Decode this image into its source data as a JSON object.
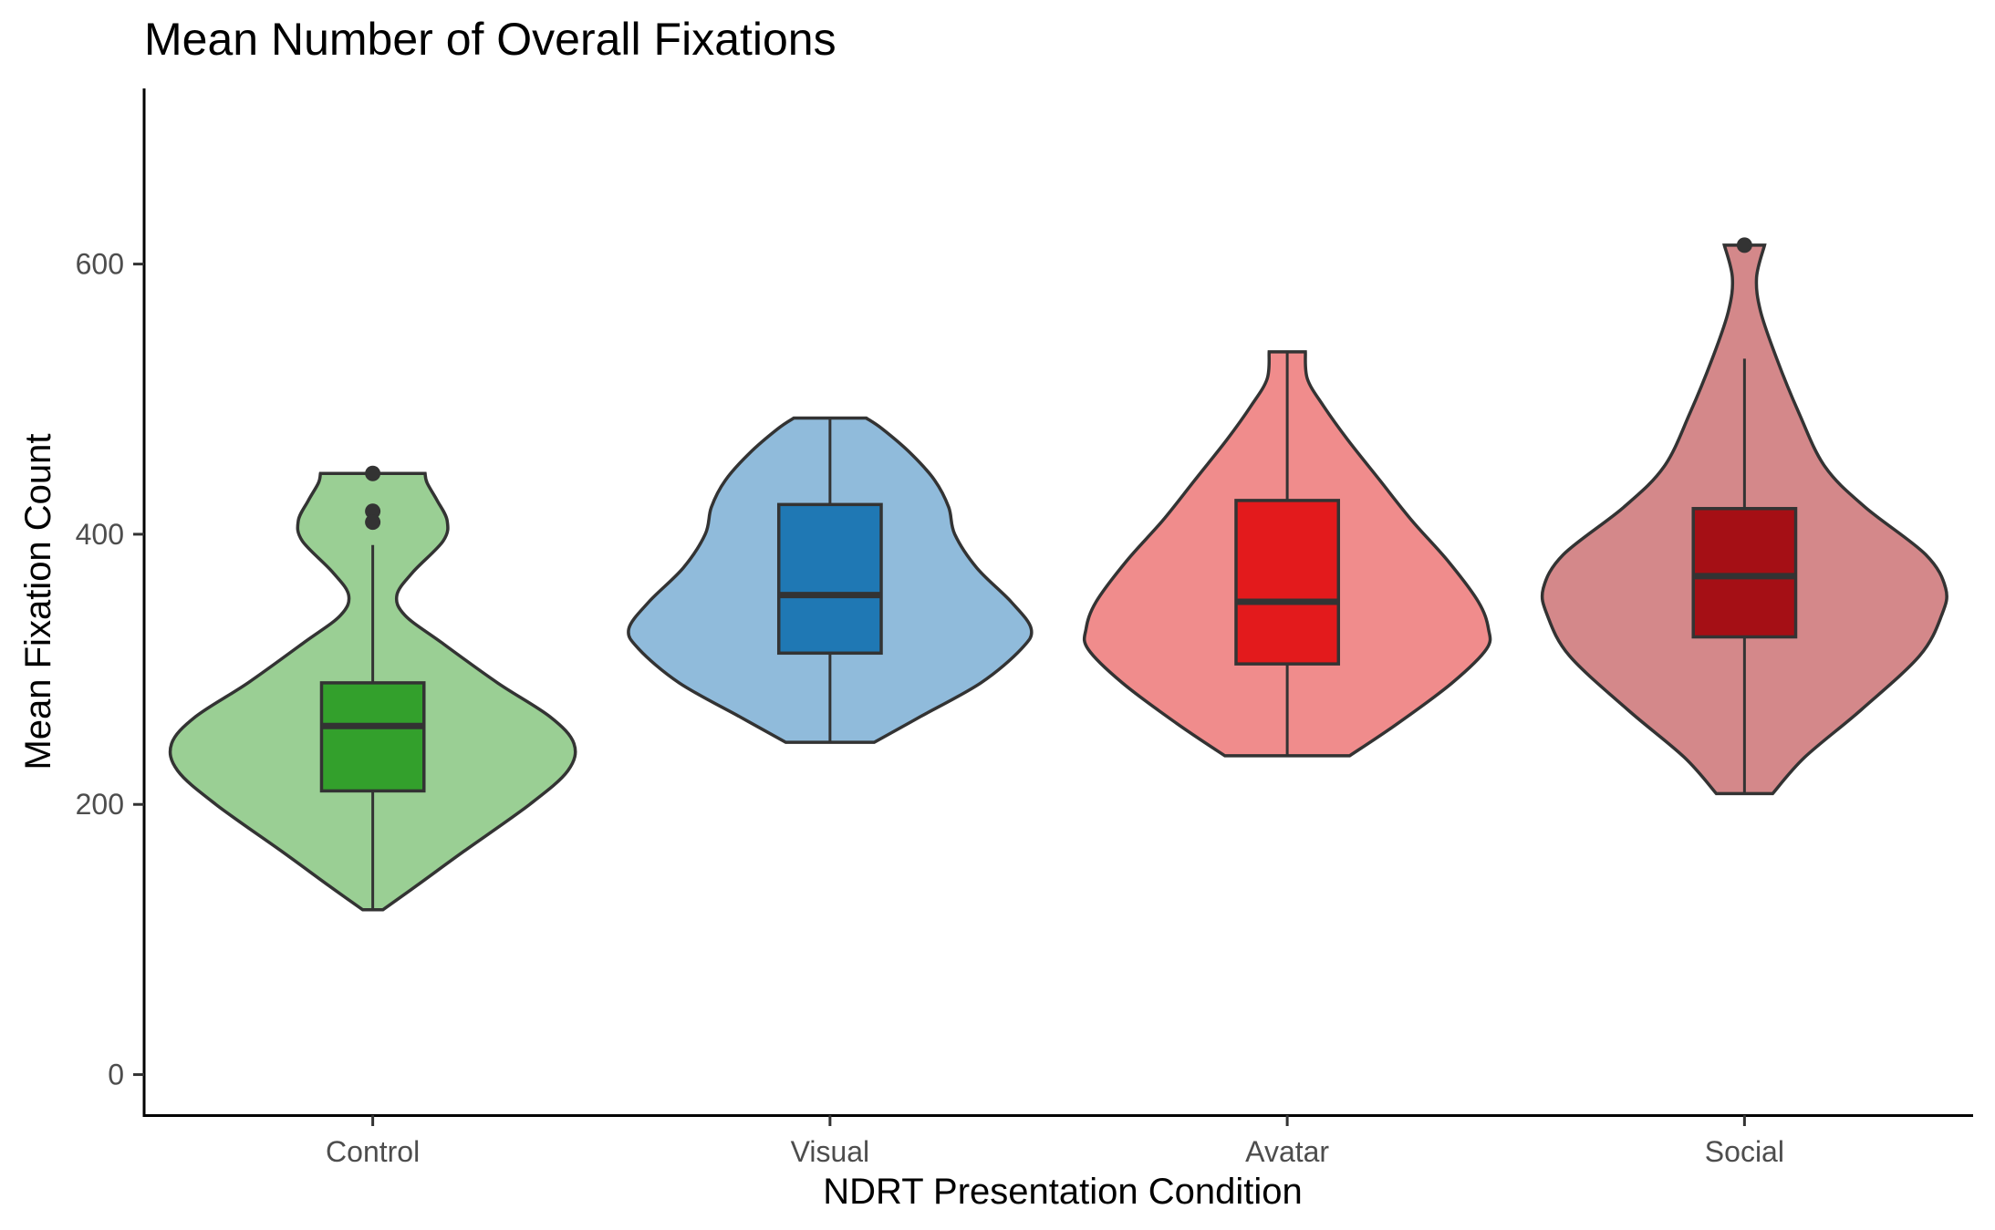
{
  "chart_data": {
    "type": "violin",
    "title": "Mean Number of Overall Fixations",
    "xlabel": "NDRT Presentation Condition",
    "ylabel": "Mean Fixation Count",
    "ylim": [
      -30,
      730
    ],
    "yticks": [
      0,
      200,
      400,
      600
    ],
    "categories": [
      "Control",
      "Visual",
      "Avatar",
      "Social"
    ],
    "grid": false,
    "legend": "none",
    "series": [
      {
        "category": "Control",
        "violin_color": "#9ACF94",
        "box_color": "#33A02C",
        "box": {
          "lower_whisker": 122,
          "q1": 210,
          "median": 258,
          "q3": 290,
          "upper_whisker": 392
        },
        "outliers": [
          445,
          417,
          409
        ],
        "density": [
          [
            122,
            0.05
          ],
          [
            140,
            0.22
          ],
          [
            165,
            0.45
          ],
          [
            200,
            0.78
          ],
          [
            225,
            0.97
          ],
          [
            245,
            1.0
          ],
          [
            265,
            0.88
          ],
          [
            290,
            0.62
          ],
          [
            320,
            0.34
          ],
          [
            340,
            0.16
          ],
          [
            355,
            0.12
          ],
          [
            372,
            0.2
          ],
          [
            395,
            0.35
          ],
          [
            410,
            0.37
          ],
          [
            425,
            0.32
          ],
          [
            438,
            0.27
          ],
          [
            445,
            0.26
          ]
        ]
      },
      {
        "category": "Visual",
        "violin_color": "#90BBDB",
        "box_color": "#1F78B4",
        "box": {
          "lower_whisker": 246,
          "q1": 312,
          "median": 355,
          "q3": 422,
          "upper_whisker": 486
        },
        "outliers": [],
        "density": [
          [
            246,
            0.22
          ],
          [
            265,
            0.45
          ],
          [
            290,
            0.75
          ],
          [
            315,
            0.95
          ],
          [
            330,
            1.0
          ],
          [
            350,
            0.9
          ],
          [
            375,
            0.73
          ],
          [
            400,
            0.62
          ],
          [
            420,
            0.59
          ],
          [
            440,
            0.52
          ],
          [
            460,
            0.4
          ],
          [
            478,
            0.26
          ],
          [
            486,
            0.18
          ]
        ]
      },
      {
        "category": "Avatar",
        "violin_color": "#F08C8C",
        "box_color": "#E31A1C",
        "box": {
          "lower_whisker": 236,
          "q1": 304,
          "median": 350,
          "q3": 425,
          "upper_whisker": 535
        },
        "outliers": [],
        "density": [
          [
            236,
            0.31
          ],
          [
            260,
            0.55
          ],
          [
            290,
            0.82
          ],
          [
            315,
            0.99
          ],
          [
            330,
            1.0
          ],
          [
            350,
            0.95
          ],
          [
            380,
            0.8
          ],
          [
            410,
            0.62
          ],
          [
            440,
            0.46
          ],
          [
            470,
            0.3
          ],
          [
            495,
            0.18
          ],
          [
            515,
            0.1
          ],
          [
            535,
            0.09
          ]
        ]
      },
      {
        "category": "Social",
        "violin_color": "#D4888A",
        "box_color": "#A50F15",
        "box": {
          "lower_whisker": 208,
          "q1": 324,
          "median": 369,
          "q3": 419,
          "upper_whisker": 530
        },
        "outliers": [
          614
        ],
        "density": [
          [
            208,
            0.14
          ],
          [
            235,
            0.3
          ],
          [
            270,
            0.58
          ],
          [
            310,
            0.87
          ],
          [
            340,
            0.98
          ],
          [
            360,
            1.0
          ],
          [
            385,
            0.9
          ],
          [
            420,
            0.6
          ],
          [
            450,
            0.4
          ],
          [
            490,
            0.27
          ],
          [
            530,
            0.16
          ],
          [
            565,
            0.08
          ],
          [
            590,
            0.06
          ],
          [
            614,
            0.1
          ]
        ]
      }
    ]
  }
}
